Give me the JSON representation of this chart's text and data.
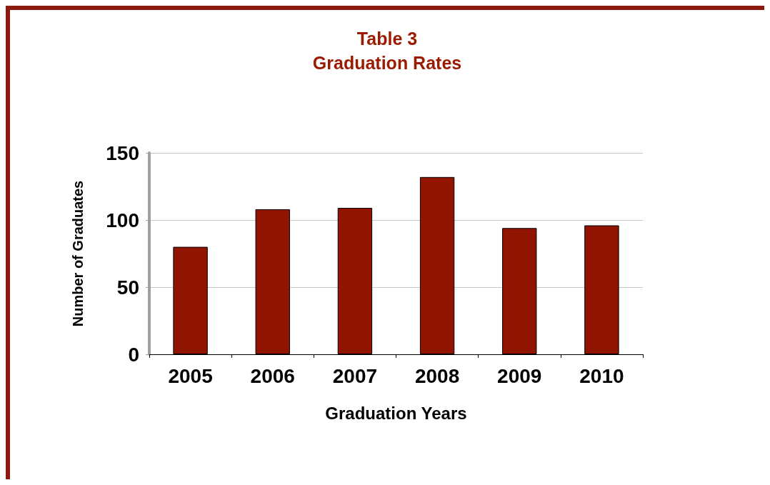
{
  "chart_data": {
    "type": "bar",
    "title": "Table 3\nGraduation Rates",
    "xlabel": "Graduation Years",
    "ylabel": "Number of Graduates",
    "categories": [
      "2005",
      "2006",
      "2007",
      "2008",
      "2009",
      "2010"
    ],
    "values": [
      80,
      108,
      109,
      132,
      94,
      96
    ],
    "color": "#911400",
    "ylim": [
      0,
      150
    ],
    "yticks": [
      0,
      50,
      100,
      150
    ],
    "grid": "y"
  }
}
